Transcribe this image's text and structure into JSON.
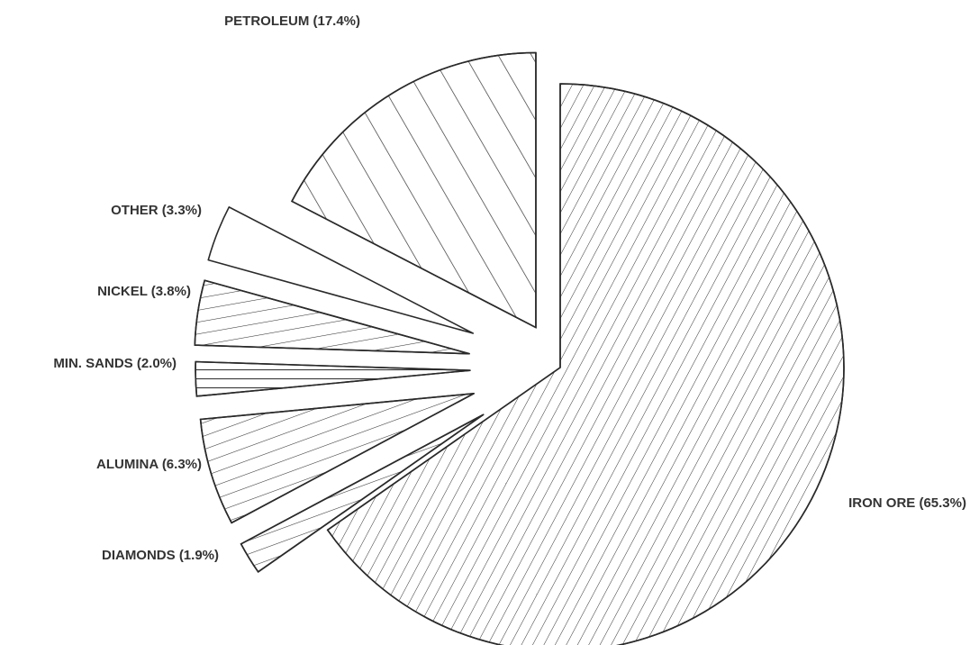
{
  "chart_data": {
    "type": "pie",
    "title": "",
    "slices": [
      {
        "label": "IRON ORE (65.3%)",
        "value": 65.3,
        "pattern": "fine-diagonal"
      },
      {
        "label": "DIAMONDS (1.9%)",
        "value": 1.9,
        "pattern": "medium-diagonal"
      },
      {
        "label": "ALUMINA (6.3%)",
        "value": 6.3,
        "pattern": "medium-diagonal"
      },
      {
        "label": "MIN. SANDS (2.0%)",
        "value": 2.0,
        "pattern": "horizontal"
      },
      {
        "label": "NICKEL (3.8%)",
        "value": 3.8,
        "pattern": "shallow-diagonal"
      },
      {
        "label": "OTHER (3.3%)",
        "value": 3.3,
        "pattern": "none"
      },
      {
        "label": "PETROLEUM (17.4%)",
        "value": 17.4,
        "pattern": "wide-diagonal"
      }
    ],
    "legend": "none",
    "style": "exploded pie with hatched slices"
  }
}
